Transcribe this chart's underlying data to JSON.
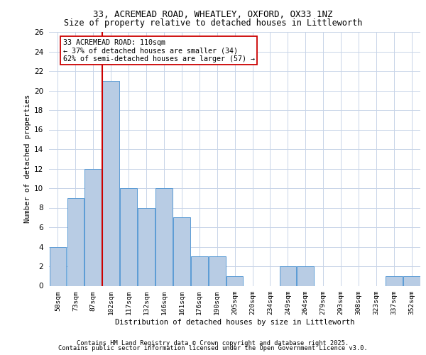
{
  "title1": "33, ACREMEAD ROAD, WHEATLEY, OXFORD, OX33 1NZ",
  "title2": "Size of property relative to detached houses in Littleworth",
  "xlabel": "Distribution of detached houses by size in Littleworth",
  "ylabel": "Number of detached properties",
  "categories": [
    "58sqm",
    "73sqm",
    "87sqm",
    "102sqm",
    "117sqm",
    "132sqm",
    "146sqm",
    "161sqm",
    "176sqm",
    "190sqm",
    "205sqm",
    "220sqm",
    "234sqm",
    "249sqm",
    "264sqm",
    "279sqm",
    "293sqm",
    "308sqm",
    "323sqm",
    "337sqm",
    "352sqm"
  ],
  "values": [
    4,
    9,
    12,
    21,
    10,
    8,
    10,
    7,
    3,
    3,
    1,
    0,
    0,
    2,
    2,
    0,
    0,
    0,
    0,
    1,
    1
  ],
  "bar_color": "#b8cce4",
  "bar_edge_color": "#5b9bd5",
  "highlight_bar_index": 3,
  "vline_color": "#cc0000",
  "annotation_text": "33 ACREMEAD ROAD: 110sqm\n← 37% of detached houses are smaller (34)\n62% of semi-detached houses are larger (57) →",
  "annotation_box_color": "#ffffff",
  "annotation_box_edge_color": "#cc0000",
  "ylim": [
    0,
    26
  ],
  "yticks": [
    0,
    2,
    4,
    6,
    8,
    10,
    12,
    14,
    16,
    18,
    20,
    22,
    24,
    26
  ],
  "bg_color": "#ffffff",
  "grid_color": "#c8d4e8",
  "footer1": "Contains HM Land Registry data © Crown copyright and database right 2025.",
  "footer2": "Contains public sector information licensed under the Open Government Licence v3.0."
}
